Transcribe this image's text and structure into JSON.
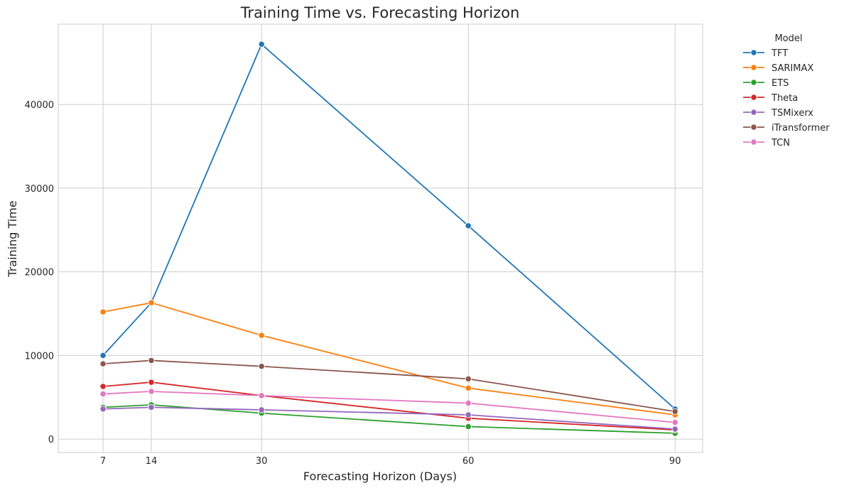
{
  "chart_data": {
    "type": "line",
    "title": "Training Time vs. Forecasting Horizon",
    "xlabel": "Forecasting Horizon (Days)",
    "ylabel": "Training Time",
    "x": [
      7,
      14,
      30,
      60,
      90
    ],
    "xticks": [
      "7",
      "14",
      "30",
      "60",
      "90"
    ],
    "xlim": [
      0.5,
      94
    ],
    "ylim": [
      -1600,
      49600
    ],
    "yticks": [
      0,
      10000,
      20000,
      30000,
      40000
    ],
    "ytick_labels": [
      "0",
      "10000",
      "20000",
      "30000",
      "40000"
    ],
    "grid": true,
    "legend": {
      "title": "Model",
      "placement": "outside-top-right"
    },
    "series": [
      {
        "name": "TFT",
        "color": "#1f77b4",
        "values": [
          10000,
          16300,
          47200,
          25500,
          3600
        ]
      },
      {
        "name": "SARIMAX",
        "color": "#ff7f0e",
        "values": [
          15200,
          16300,
          12400,
          6100,
          2900
        ]
      },
      {
        "name": "ETS",
        "color": "#2ca02c",
        "values": [
          3800,
          4100,
          3100,
          1500,
          700
        ]
      },
      {
        "name": "Theta",
        "color": "#d62728",
        "values": [
          6300,
          6800,
          5200,
          2500,
          1100
        ]
      },
      {
        "name": "TSMixerx",
        "color": "#9467bd",
        "values": [
          3600,
          3800,
          3500,
          2900,
          1200
        ]
      },
      {
        "name": "iTransformer",
        "color": "#8c564b",
        "values": [
          9000,
          9400,
          8700,
          7200,
          3300
        ]
      },
      {
        "name": "TCN",
        "color": "#e377c2",
        "values": [
          5400,
          5700,
          5200,
          4300,
          2000
        ]
      }
    ]
  }
}
